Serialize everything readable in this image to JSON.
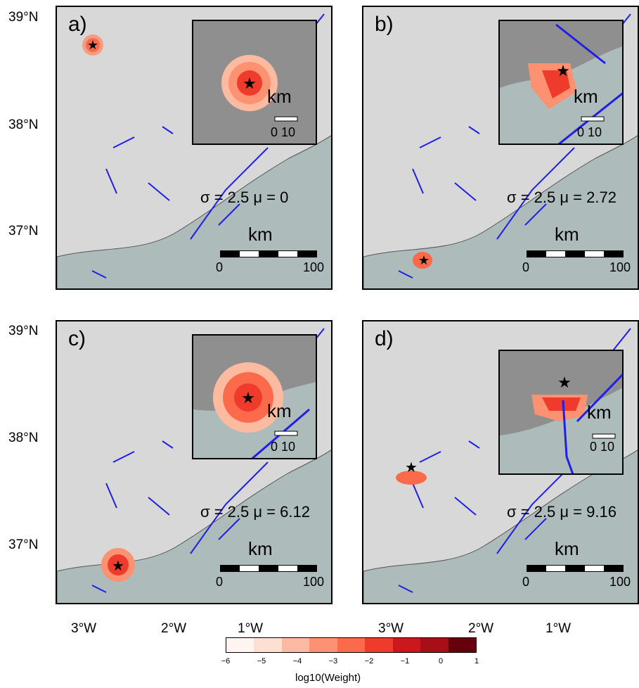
{
  "axes": {
    "y_labels": [
      "39°N",
      "38°N",
      "37°N"
    ],
    "x_labels": [
      "3°W",
      "2°W",
      "1°W"
    ]
  },
  "panels": [
    {
      "label": "a)",
      "sigma_text": "σ = 2.5",
      "mu_text": "μ = 0",
      "epicenter": "star-icon"
    },
    {
      "label": "b)",
      "sigma_text": "σ = 2.5",
      "mu_text": "μ = 2.72",
      "epicenter": "star-icon"
    },
    {
      "label": "c)",
      "sigma_text": "σ = 2.5",
      "mu_text": "μ = 6.12",
      "epicenter": "star-icon"
    },
    {
      "label": "d)",
      "sigma_text": "σ = 2.5",
      "mu_text": "μ = 9.16",
      "epicenter": "star-icon"
    }
  ],
  "scalebar": {
    "unit": "km",
    "start": "0",
    "end": "100"
  },
  "inset_scalebar": {
    "unit": "km",
    "start": "0",
    "end": "10"
  },
  "colorbar": {
    "title": "log10(Weight)",
    "ticks": [
      "−6",
      "−5",
      "−4",
      "−3",
      "−2",
      "−1",
      "0",
      "1"
    ],
    "colors": [
      "#fff5f0",
      "#fee0d2",
      "#fcbba1",
      "#fc9272",
      "#fb6a4a",
      "#ef3b2c",
      "#cb181d",
      "#a50f15",
      "#67000d"
    ]
  },
  "colors": {
    "fault": "#1f1fe6",
    "land": "#d8d8d8",
    "sea": "#aebbbb",
    "inset_land": "#8f8f8f"
  }
}
